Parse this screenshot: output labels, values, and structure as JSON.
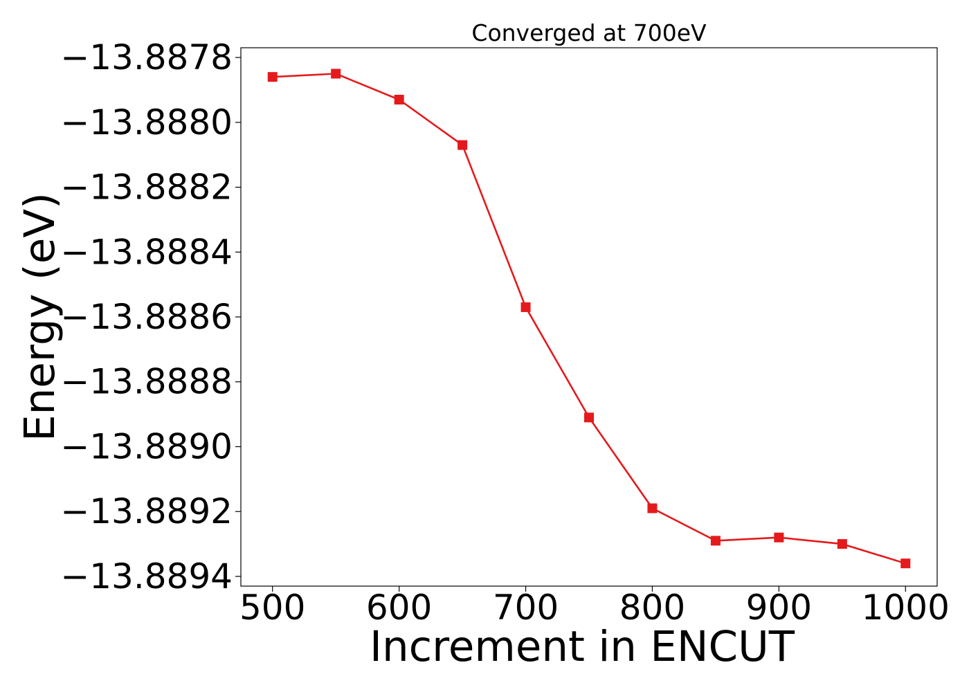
{
  "chart_data": {
    "type": "line",
    "title": "Converged at 700eV",
    "xlabel": "Increment in ENCUT",
    "ylabel": "Energy (eV)",
    "x": [
      500,
      550,
      600,
      650,
      700,
      750,
      800,
      850,
      900,
      950,
      1000
    ],
    "series": [
      {
        "values": [
          -13.88786,
          -13.88785,
          -13.88793,
          -13.88807,
          -13.88857,
          -13.88891,
          -13.88919,
          -13.88929,
          -13.88928,
          -13.8893,
          -13.88936
        ],
        "color": "#e41a1c",
        "marker": "square"
      }
    ],
    "xticks": [
      500,
      600,
      700,
      800,
      900,
      1000
    ],
    "xtick_labels": [
      "500",
      "600",
      "700",
      "800",
      "900",
      "1000"
    ],
    "yticks": [
      -13.8878,
      -13.888,
      -13.8882,
      -13.8884,
      -13.8886,
      -13.8888,
      -13.889,
      -13.8892,
      -13.8894
    ],
    "ytick_labels": [
      "−13.8878",
      "−13.8880",
      "−13.8882",
      "−13.8884",
      "−13.8886",
      "−13.8888",
      "−13.8890",
      "−13.8892",
      "−13.8894"
    ],
    "xlim": [
      475,
      1025
    ],
    "ylim": [
      -13.88943,
      -13.88777
    ],
    "grid": false,
    "legend": "none"
  }
}
